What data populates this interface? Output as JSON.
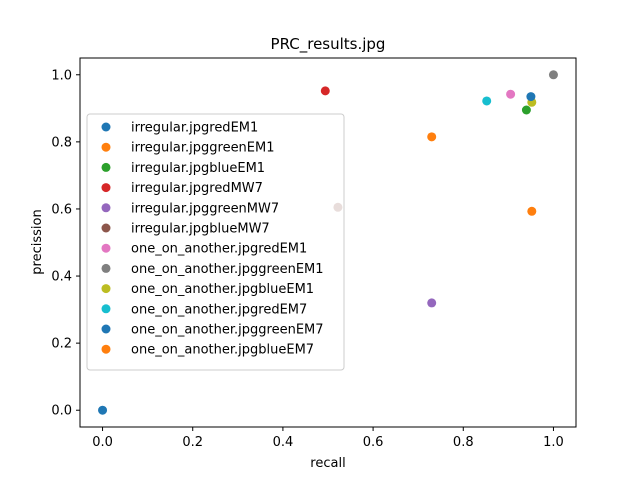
{
  "chart_data": {
    "type": "scatter",
    "title": "PRC_results.jpg",
    "xlabel": "recall",
    "ylabel": "precission",
    "xlim": [
      -0.05,
      1.05
    ],
    "ylim": [
      -0.05,
      1.05
    ],
    "xticks": [
      0.0,
      0.2,
      0.4,
      0.6,
      0.8,
      1.0
    ],
    "xtick_labels": [
      "0.0",
      "0.2",
      "0.4",
      "0.6",
      "0.8",
      "1.0"
    ],
    "yticks": [
      0.0,
      0.2,
      0.4,
      0.6,
      0.8,
      1.0
    ],
    "ytick_labels": [
      "0.0",
      "0.2",
      "0.4",
      "0.6",
      "0.8",
      "1.0"
    ],
    "grid": false,
    "legend_position": "center-left",
    "series": [
      {
        "name": "irregular.jpgredEM1",
        "color": "#1f77b4",
        "points": [
          [
            0.0,
            0.0
          ]
        ]
      },
      {
        "name": "irregular.jpggreenEM1",
        "color": "#ff7f0e",
        "points": [
          [
            0.73,
            0.815
          ]
        ]
      },
      {
        "name": "irregular.jpgblueEM1",
        "color": "#2ca02c",
        "points": [
          [
            0.94,
            0.895
          ]
        ]
      },
      {
        "name": "irregular.jpgredMW7",
        "color": "#d62728",
        "points": [
          [
            0.494,
            0.952
          ]
        ]
      },
      {
        "name": "irregular.jpggreenMW7",
        "color": "#9467bd",
        "points": [
          [
            0.73,
            0.32
          ]
        ]
      },
      {
        "name": "irregular.jpgblueMW7",
        "color": "#8c564b",
        "points": [
          [
            0.522,
            0.605
          ]
        ]
      },
      {
        "name": "one_on_another.jpgredEM1",
        "color": "#e377c2",
        "points": [
          [
            0.905,
            0.942
          ]
        ]
      },
      {
        "name": "one_on_another.jpggreenEM1",
        "color": "#7f7f7f",
        "points": [
          [
            1.0,
            1.0
          ]
        ]
      },
      {
        "name": "one_on_another.jpgblueEM1",
        "color": "#bcbd22",
        "points": [
          [
            0.952,
            0.918
          ]
        ]
      },
      {
        "name": "one_on_another.jpgredEM7",
        "color": "#17becf",
        "points": [
          [
            0.852,
            0.922
          ]
        ]
      },
      {
        "name": "one_on_another.jpggreenEM7",
        "color": "#1f77b4",
        "points": [
          [
            0.95,
            0.935
          ]
        ]
      },
      {
        "name": "one_on_another.jpgblueEM7",
        "color": "#ff7f0e",
        "points": [
          [
            0.952,
            0.593
          ]
        ]
      }
    ]
  }
}
